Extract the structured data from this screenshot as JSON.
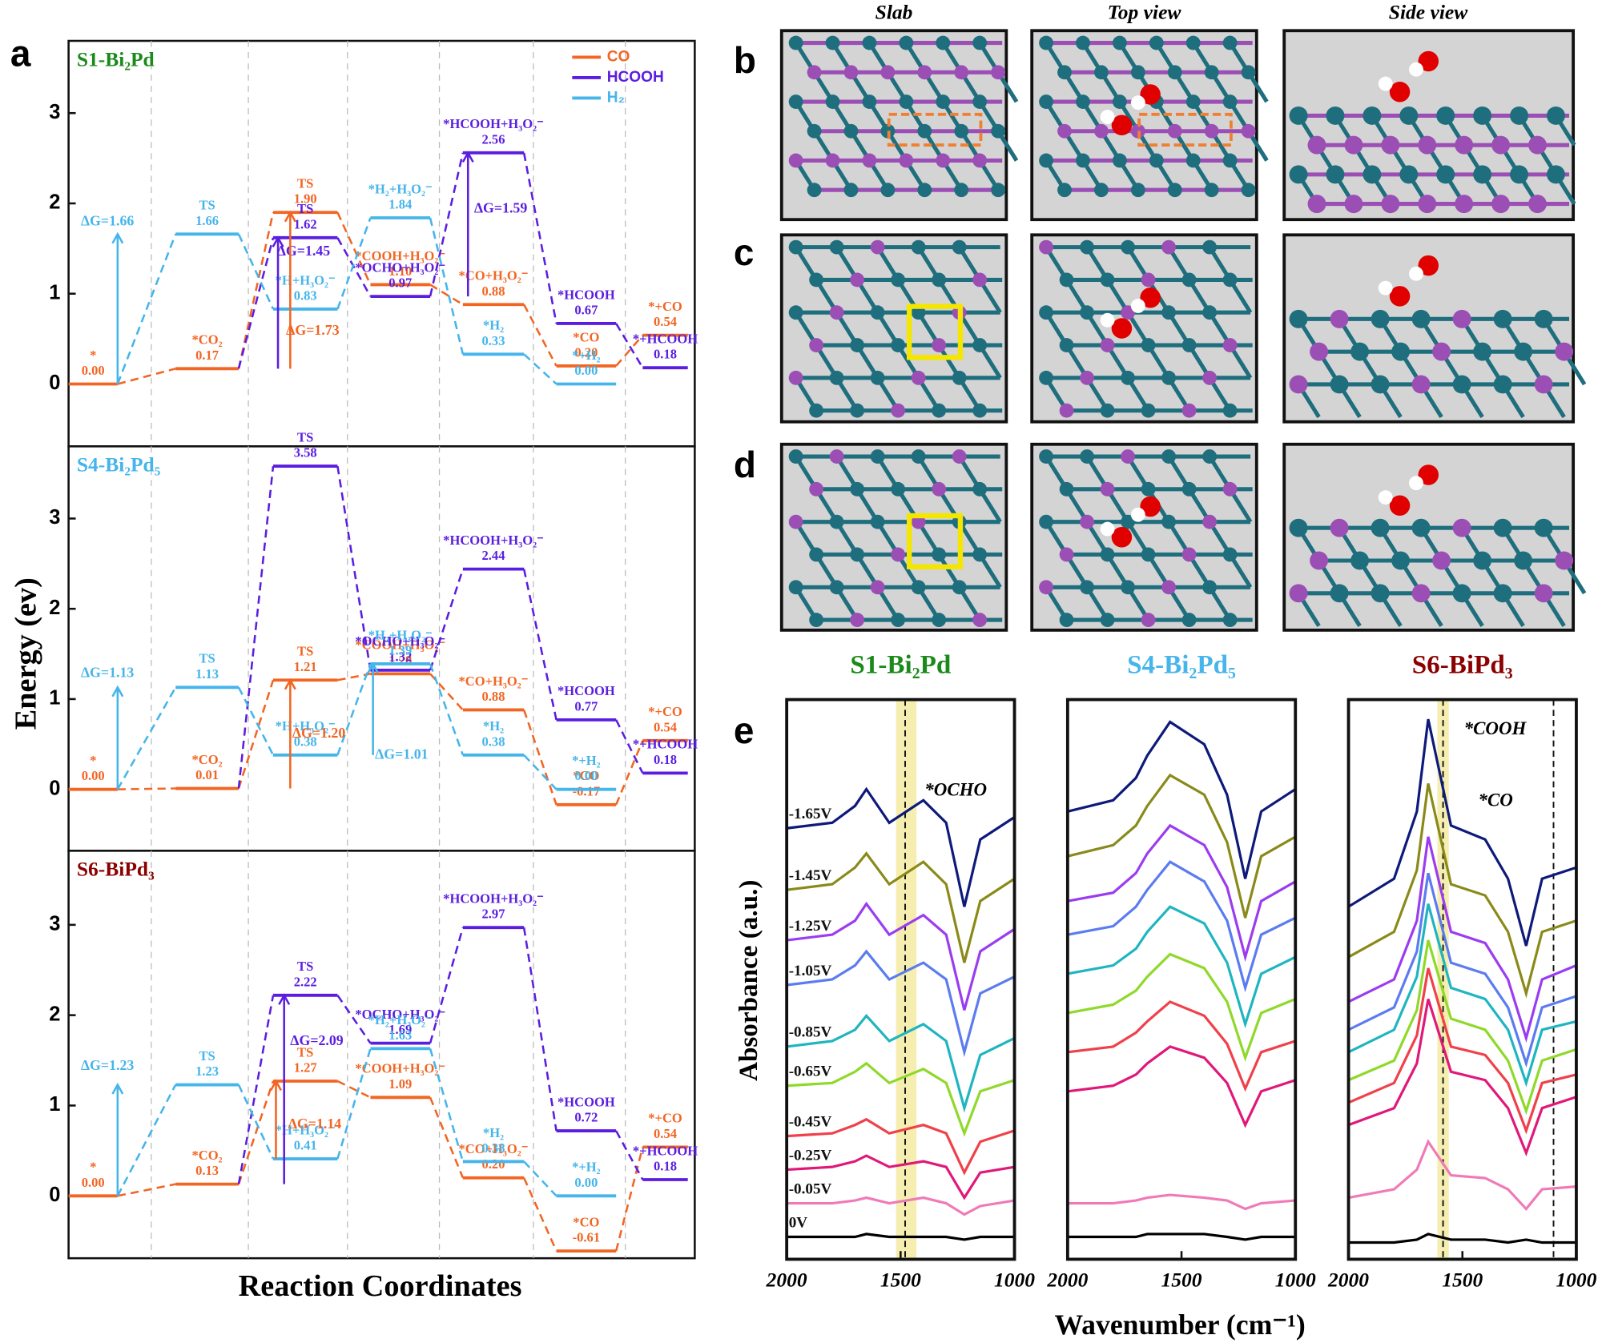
{
  "panel_labels": [
    "a",
    "b",
    "c",
    "d",
    "e"
  ],
  "figure_a": {
    "ylabel": "Energy (ev)",
    "xlabel": "Reaction Coordinates"
  },
  "structures": {
    "headers": [
      "Slab",
      "Top view",
      "Side view"
    ]
  },
  "figure_e": {
    "ylabel": "Absorbance (a.u.)",
    "xlabel": "Wavenumber (cm⁻¹)"
  },
  "chart_data": [
    {
      "type": "energy",
      "title": "S1-Bi₂Pd",
      "title_color": "#1a8a1a",
      "ylim": [
        -0.69,
        3.8
      ],
      "yticks": [
        0,
        1,
        2,
        3
      ],
      "legend": "upper right",
      "series": [
        {
          "name": "CO",
          "color": "#f26522",
          "states": [
            "*",
            "*CO₂",
            "TS",
            "*COOH+H₃O₂⁻",
            "*CO+H₃O₂⁻",
            "*CO",
            "*+CO"
          ],
          "values": [
            0,
            0.17,
            1.9,
            1.1,
            0.88,
            0.2,
            0.54
          ],
          "value_labels": [
            "0.00",
            "0.17",
            "1.90",
            "1.10",
            "0.88",
            "0.20",
            "0.54"
          ]
        },
        {
          "name": "HCOOH",
          "color": "#5b1ee0",
          "states": [
            null,
            null,
            "TS",
            "*OCHO+H₃O₂⁻",
            "*HCOOH+H₃O₂⁻",
            "*HCOOH",
            "*+HCOOH"
          ],
          "values": [
            null,
            null,
            1.62,
            0.97,
            2.56,
            0.67,
            0.18
          ],
          "value_labels": [
            null,
            null,
            "1.62",
            "0.97",
            "2.56",
            "0.67",
            "0.18"
          ]
        },
        {
          "name": "H₂",
          "color": "#45b5ea",
          "states": [
            null,
            "TS",
            "*H+H₃O₂⁻",
            "*H₂+H₃O₂⁻",
            "*H₂",
            "*+H₂",
            null
          ],
          "values": [
            null,
            1.66,
            0.83,
            1.84,
            0.33,
            0,
            null
          ],
          "value_labels": [
            null,
            "1.66",
            "0.83",
            "1.84",
            "0.33",
            "0.00",
            null
          ]
        }
      ],
      "annotations": [
        {
          "text": "ΔG=1.66",
          "color": "#45b5ea"
        },
        {
          "text": "ΔG=1.45",
          "color": "#5b1ee0"
        },
        {
          "text": "ΔG=1.73",
          "color": "#f26522"
        },
        {
          "text": "ΔG=1.59",
          "color": "#5b1ee0"
        }
      ]
    },
    {
      "type": "energy",
      "title": "S4-Bi₂Pd₅",
      "title_color": "#45b5ea",
      "ylim": [
        -0.68,
        3.8
      ],
      "yticks": [
        0,
        1,
        2,
        3
      ],
      "series": [
        {
          "color": "#f26522",
          "states": [
            "*",
            "*CO₂",
            "TS",
            "*COOH+H₃O₂⁻",
            "*CO+H₃O₂⁻",
            "*CO",
            "*+CO"
          ],
          "values": [
            0,
            0.01,
            1.21,
            1.28,
            0.88,
            -0.17,
            0.54
          ],
          "value_labels": [
            "0.00",
            "0.01",
            "1.21",
            "1.28",
            "0.88",
            "-0.17",
            "0.54"
          ]
        },
        {
          "color": "#5b1ee0",
          "states": [
            null,
            null,
            "TS",
            "*OCHO+H₃O₂⁻",
            "*HCOOH+H₃O₂⁻",
            "*HCOOH",
            "*+HCOOH"
          ],
          "values": [
            null,
            null,
            3.58,
            1.32,
            2.44,
            0.77,
            0.18
          ],
          "value_labels": [
            null,
            null,
            "3.58",
            "1.32",
            "2.44",
            "0.77",
            "0.18"
          ]
        },
        {
          "color": "#45b5ea",
          "states": [
            null,
            "TS",
            "*H+H₃O₂⁻",
            "*H₂+H₃O₂⁻",
            "*H₂",
            "*+H₂",
            null
          ],
          "values": [
            null,
            1.13,
            0.38,
            1.39,
            0.38,
            0,
            null
          ],
          "value_labels": [
            null,
            "1.13",
            "0.38",
            "1.39",
            "0.38",
            "0.00",
            null
          ]
        }
      ],
      "annotations": [
        {
          "text": "ΔG=1.13",
          "color": "#45b5ea"
        },
        {
          "text": "ΔG=1.20",
          "color": "#f26522"
        },
        {
          "text": "ΔG=1.01",
          "color": "#45b5ea"
        }
      ]
    },
    {
      "type": "energy",
      "title": "S6-BiPd₃",
      "title_color": "#8b0000",
      "ylim": [
        -0.69,
        3.82
      ],
      "yticks": [
        0,
        1,
        2,
        3
      ],
      "series": [
        {
          "color": "#f26522",
          "states": [
            "*",
            "*CO₂",
            "TS",
            "*COOH+H₃O₂⁻",
            "*CO+H₃O₂⁻",
            "*CO",
            "*+CO"
          ],
          "values": [
            0,
            0.13,
            1.27,
            1.09,
            0.2,
            -0.61,
            0.54
          ],
          "value_labels": [
            "0.00",
            "0.13",
            "1.27",
            "1.09",
            "0.20",
            "-0.61",
            "0.54"
          ]
        },
        {
          "color": "#5b1ee0",
          "states": [
            null,
            null,
            "TS",
            "*OCHO+H₃O₂⁻",
            "*HCOOH+H₃O₂⁻",
            "*HCOOH",
            "*+HCOOH"
          ],
          "values": [
            null,
            null,
            2.22,
            1.69,
            2.97,
            0.72,
            0.18
          ],
          "value_labels": [
            null,
            null,
            "2.22",
            "1.69",
            "2.97",
            "0.72",
            "0.18"
          ]
        },
        {
          "color": "#45b5ea",
          "states": [
            null,
            "TS",
            "*H+H₃O₂⁻",
            "*H₂+H₃O₂⁻",
            "*H₂",
            "*+H₂",
            null
          ],
          "values": [
            null,
            1.23,
            0.41,
            1.63,
            0.38,
            0,
            null
          ],
          "value_labels": [
            null,
            "1.23",
            "0.41",
            "1.63",
            "0.38",
            "0.00",
            null
          ]
        }
      ],
      "annotations": [
        {
          "text": "ΔG=1.23",
          "color": "#45b5ea"
        },
        {
          "text": "ΔG=2.09",
          "color": "#5b1ee0"
        },
        {
          "text": "ΔG=1.14",
          "color": "#f26522"
        }
      ]
    },
    {
      "type": "line",
      "title": "S1-Bi₂Pd",
      "title_color": "#1a8a1a",
      "xlim": [
        2000,
        1000
      ],
      "xticks": [
        2000,
        1500,
        1000
      ],
      "ylim": [
        0,
        100
      ],
      "x": [
        2000,
        1800,
        1700,
        1650,
        1550,
        1400,
        1300,
        1220,
        1150,
        1000
      ],
      "bands": [
        [
          1520,
          1430
        ]
      ],
      "vlines": [
        1480
      ],
      "annotations": [
        "*OCHO"
      ],
      "series": [
        {
          "name": "-1.65V",
          "color": "#0d1a7a",
          "values": [
            77,
            78,
            81,
            84,
            78,
            82,
            78,
            63,
            75,
            79
          ]
        },
        {
          "name": "-1.45V",
          "color": "#8a8a1a",
          "values": [
            66,
            67,
            70,
            72.5,
            67,
            71,
            67,
            53,
            64,
            68
          ]
        },
        {
          "name": "-1.25V",
          "color": "#9b3cf0",
          "values": [
            57,
            58,
            60.5,
            63.5,
            58,
            61.5,
            58,
            44.5,
            55,
            59
          ]
        },
        {
          "name": "-1.05V",
          "color": "#5b7cf0",
          "values": [
            49,
            50,
            52.5,
            55,
            50,
            53,
            50,
            37,
            47.5,
            50.5
          ]
        },
        {
          "name": "-0.85V",
          "color": "#1fb5c0",
          "values": [
            38,
            39,
            41,
            43.5,
            39,
            42,
            39,
            27,
            36.5,
            39.5
          ]
        },
        {
          "name": "-0.65V",
          "color": "#8fd92a",
          "values": [
            31,
            31.5,
            33.5,
            35,
            31.5,
            34,
            31.5,
            22.5,
            30,
            32
          ]
        },
        {
          "name": "-0.45V",
          "color": "#f0404a",
          "values": [
            22,
            22.5,
            24,
            25,
            22.5,
            24,
            22.5,
            15.5,
            21,
            23
          ]
        },
        {
          "name": "-0.25V",
          "color": "#e0187a",
          "values": [
            16,
            16.5,
            17.5,
            18.5,
            16.5,
            17.5,
            16.5,
            11,
            15.5,
            16.5
          ]
        },
        {
          "name": "-0.05V",
          "color": "#f07ab8",
          "values": [
            10,
            10,
            10.5,
            11,
            10,
            11,
            10,
            8,
            9.5,
            10.5
          ]
        },
        {
          "name": "0V",
          "color": "#000000",
          "values": [
            4,
            4,
            4,
            4.5,
            4,
            4,
            4,
            3.5,
            4,
            4
          ]
        }
      ]
    },
    {
      "type": "line",
      "title": "S4-Bi₂Pd₅",
      "title_color": "#45b5ea",
      "xlim": [
        2000,
        1000
      ],
      "xticks": [
        2000,
        1500,
        1000
      ],
      "ylim": [
        0,
        100
      ],
      "x": [
        2000,
        1800,
        1700,
        1650,
        1550,
        1400,
        1300,
        1220,
        1150,
        1000
      ],
      "series": [
        {
          "color": "#0d1a7a",
          "values": [
            80,
            82,
            86,
            90,
            96,
            92,
            83,
            68,
            80,
            84
          ]
        },
        {
          "color": "#8a8a1a",
          "values": [
            72,
            74,
            77.5,
            81,
            86.5,
            83,
            74.5,
            61,
            72,
            75.5
          ]
        },
        {
          "color": "#9b3cf0",
          "values": [
            64,
            65.5,
            69,
            72.5,
            77.5,
            74,
            66.5,
            54,
            64,
            67.5
          ]
        },
        {
          "color": "#5b7cf0",
          "values": [
            58,
            59.5,
            63,
            66,
            71,
            67.5,
            60.5,
            48.5,
            58,
            61
          ]
        },
        {
          "color": "#1fb5c0",
          "values": [
            51,
            52.5,
            55.5,
            58.5,
            63,
            60,
            53,
            42,
            51,
            54
          ]
        },
        {
          "color": "#8fd92a",
          "values": [
            44,
            45.5,
            48,
            50.5,
            54.5,
            52,
            46,
            36,
            44,
            46.5
          ]
        },
        {
          "color": "#f0404a",
          "values": [
            37,
            38,
            40.5,
            42.5,
            46,
            43.5,
            38.5,
            30.5,
            37,
            39
          ]
        },
        {
          "color": "#e0187a",
          "values": [
            30,
            31,
            33,
            35,
            38,
            36,
            31.5,
            24,
            30,
            32
          ]
        },
        {
          "color": "#f07ab8",
          "values": [
            10,
            10,
            10.5,
            11,
            11.5,
            11,
            10.5,
            9,
            10,
            10.5
          ]
        },
        {
          "color": "#000000",
          "values": [
            4,
            4,
            4,
            4.5,
            4.5,
            4.5,
            4,
            3.5,
            4,
            4
          ]
        }
      ]
    },
    {
      "type": "line",
      "title": "S6-BiPd₃",
      "title_color": "#8b0000",
      "xlim": [
        2000,
        1000
      ],
      "xticks": [
        2000,
        1500,
        1000
      ],
      "ylim": [
        0,
        100
      ],
      "x": [
        2000,
        1800,
        1700,
        1650,
        1550,
        1400,
        1300,
        1220,
        1150,
        1000
      ],
      "bands": [
        [
          1610,
          1560
        ]
      ],
      "vlines": [
        1585,
        1100
      ],
      "annotations": [
        "*COOH",
        "*CO"
      ],
      "series": [
        {
          "color": "#0d1a7a",
          "values": [
            63,
            68,
            80,
            96.5,
            77.5,
            75,
            68,
            56,
            68,
            70
          ]
        },
        {
          "color": "#8a8a1a",
          "values": [
            54,
            58.5,
            69.5,
            85,
            67,
            65,
            58.5,
            47.5,
            58.5,
            60.5
          ]
        },
        {
          "color": "#9b3cf0",
          "values": [
            46,
            50,
            60.5,
            75.5,
            58.5,
            56.5,
            50,
            39.5,
            50,
            52.5
          ]
        },
        {
          "color": "#5b7cf0",
          "values": [
            41,
            45,
            55,
            69,
            53,
            51,
            45,
            35,
            45,
            47
          ]
        },
        {
          "color": "#1fb5c0",
          "values": [
            37,
            41,
            50.5,
            63.5,
            48.5,
            46.5,
            41,
            31.5,
            41,
            42.5
          ]
        },
        {
          "color": "#8fd92a",
          "values": [
            32,
            35.5,
            44.5,
            57,
            43,
            41,
            35.5,
            26.5,
            35.5,
            37.5
          ]
        },
        {
          "color": "#f0404a",
          "values": [
            28,
            31.5,
            40,
            52,
            38,
            36.5,
            31.5,
            23,
            31.5,
            33
          ]
        },
        {
          "color": "#e0187a",
          "values": [
            24,
            27,
            35,
            46.5,
            33.5,
            32,
            27,
            19,
            27,
            29
          ]
        },
        {
          "color": "#f07ab8",
          "values": [
            11,
            12.5,
            16,
            21,
            15,
            14.5,
            12.5,
            9,
            12.5,
            13
          ]
        },
        {
          "color": "#000000",
          "values": [
            3,
            3,
            3.5,
            4.5,
            3.5,
            3.5,
            3,
            3.5,
            3,
            3
          ]
        }
      ]
    }
  ]
}
